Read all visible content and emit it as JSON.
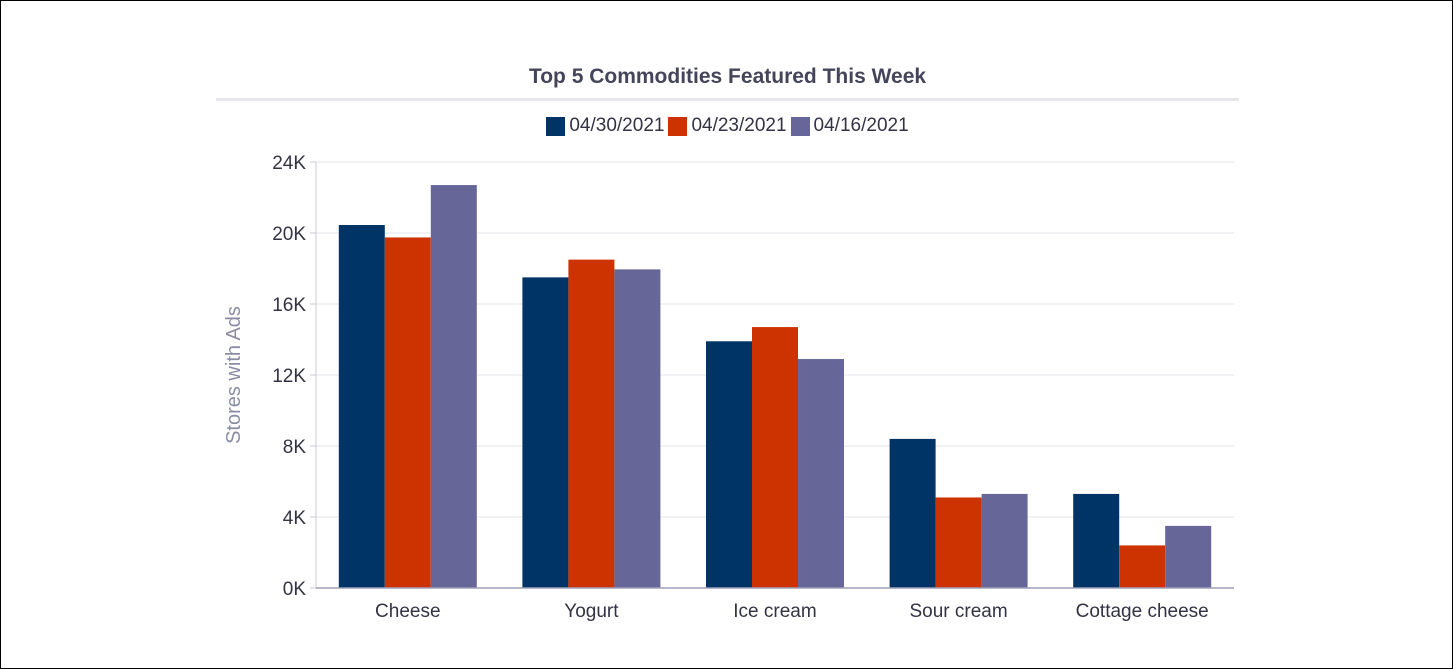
{
  "chart_data": {
    "type": "bar",
    "title": "Top 5 Commodities Featured This Week",
    "xlabel": "",
    "ylabel": "Stores with Ads",
    "ylim": [
      0,
      24000
    ],
    "yticks": [
      0,
      4000,
      8000,
      12000,
      16000,
      20000,
      24000
    ],
    "ytick_labels": [
      "0K",
      "4K",
      "8K",
      "12K",
      "16K",
      "20K",
      "24K"
    ],
    "grid": true,
    "legend_position": "top-center",
    "categories": [
      "Cheese",
      "Yogurt",
      "Ice cream",
      "Sour cream",
      "Cottage cheese"
    ],
    "series": [
      {
        "name": "04/30/2021",
        "color": "#003366",
        "values": [
          20450,
          17500,
          13900,
          8400,
          5300
        ]
      },
      {
        "name": "04/23/2021",
        "color": "#cc3300",
        "values": [
          19750,
          18500,
          14700,
          5100,
          2400
        ]
      },
      {
        "name": "04/16/2021",
        "color": "#666699",
        "values": [
          22700,
          17950,
          12900,
          5300,
          3500
        ]
      }
    ]
  }
}
